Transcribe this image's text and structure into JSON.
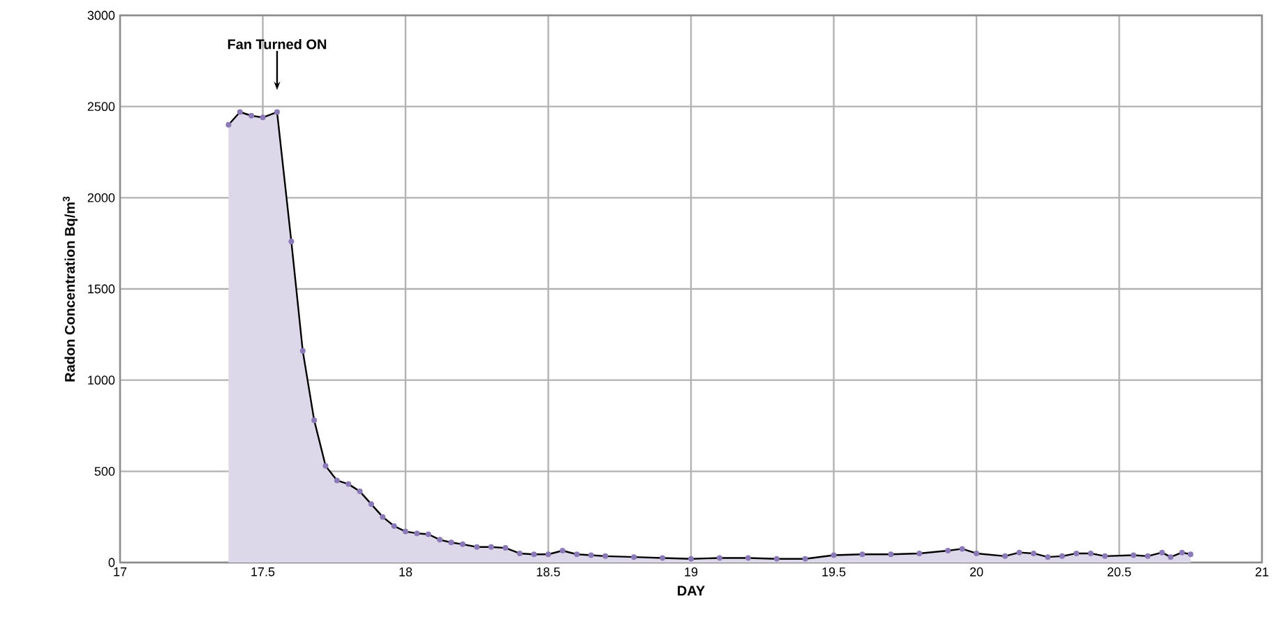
{
  "chart_data": {
    "type": "area",
    "xlabel": "DAY",
    "ylabel": "Radon Concentration  Bq/m$^{3}$",
    "x": [
      17.38,
      17.42,
      17.46,
      17.5,
      17.55,
      17.6,
      17.64,
      17.68,
      17.72,
      17.76,
      17.8,
      17.84,
      17.88,
      17.92,
      17.96,
      18.0,
      18.04,
      18.08,
      18.12,
      18.16,
      18.2,
      18.25,
      18.3,
      18.35,
      18.4,
      18.45,
      18.5,
      18.55,
      18.6,
      18.65,
      18.7,
      18.8,
      18.9,
      19.0,
      19.1,
      19.2,
      19.3,
      19.4,
      19.5,
      19.6,
      19.7,
      19.8,
      19.9,
      19.95,
      20.0,
      20.1,
      20.15,
      20.2,
      20.25,
      20.3,
      20.35,
      20.4,
      20.45,
      20.55,
      20.6,
      20.65,
      20.68,
      20.72,
      20.75
    ],
    "series": [
      {
        "color": "#8c7ab8",
        "values": [
          2400,
          2470,
          2450,
          2440,
          2470,
          1760,
          1160,
          780,
          530,
          450,
          430,
          390,
          320,
          250,
          200,
          170,
          160,
          155,
          125,
          110,
          100,
          85,
          85,
          80,
          50,
          45,
          45,
          65,
          45,
          40,
          35,
          30,
          25,
          20,
          25,
          25,
          20,
          20,
          40,
          45,
          45,
          50,
          65,
          75,
          50,
          35,
          55,
          50,
          30,
          35,
          50,
          50,
          35,
          40,
          35,
          55,
          30,
          55,
          45
        ]
      }
    ],
    "xlim": [
      17,
      21
    ],
    "ylim": [
      0,
      3000
    ],
    "xticks": [
      17,
      17.5,
      18,
      18.5,
      19,
      19.5,
      20,
      20.5,
      21
    ],
    "yticks": [
      0,
      500,
      1000,
      1500,
      2000,
      2500,
      3000
    ],
    "grid": true,
    "marker": "circle",
    "line_style": "solid",
    "annotations": [
      "Fan Turned ON"
    ]
  }
}
